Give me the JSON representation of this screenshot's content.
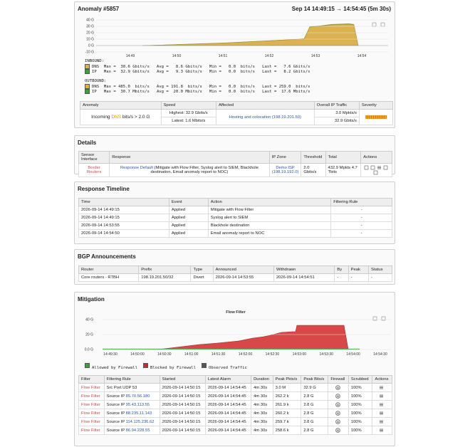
{
  "anomaly": {
    "title": "Anomaly #5857",
    "time": "Sep 14 14:49:15 → 14:54:45 (5m 30s)",
    "chart": {
      "yticks": [
        "40 G",
        "30 G",
        "20 G",
        "10 G",
        "0 G",
        "-10 G"
      ],
      "xticks": [
        "14:49",
        "14:50",
        "14:51",
        "14:52",
        "14:53",
        "14:54"
      ]
    },
    "inbound": {
      "heading": "INBOUND:",
      "lines": [
        {
          "name": "DNS",
          "stats": "  Max =  30.6 Gbits/s   Avg =   8.6 Gbits/s   Min =   0.0  bits/s   Last =   7.6 Gbits/s"
        },
        {
          "name": "IP",
          "stats": "   Max =  32.9 Gbits/s   Avg =   9.3 Gbits/s   Min =   0.0  bits/s   Last =   8.2 Gbits/s"
        }
      ]
    },
    "outbound": {
      "heading": "OUTBOUND:",
      "lines": [
        {
          "name": "DNS",
          "stats": "  Max = 485.0  bits/s   Avg = 191.8  bits/s   Min =   0.0  bits/s   Last = 259.0  bits/s"
        },
        {
          "name": "IP",
          "stats": "   Max =  30.7 Mbits/s   Avg =  20.0 Mbits/s   Min =   0.0  bits/s   Last =  17.6 Mbits/s"
        }
      ]
    },
    "summary": {
      "headers": [
        "Anomaly",
        "Speed",
        "Affected",
        "Overall IP Traffic",
        "Severity"
      ],
      "anomaly": [
        "Incoming ",
        "DNS",
        " bits/s > 2.0 G"
      ],
      "speed": [
        "Highest: 32.9 Gbits/s",
        "Latest: 1.6 Mbits/s"
      ],
      "affected": [
        "Hosting and colocation",
        "(198.19.201.50)"
      ],
      "traffic": [
        "3.0 Mpkts/s",
        "32.9 Gbits/s"
      ]
    }
  },
  "details": {
    "title": "Details",
    "headers": [
      "Sensor Interface",
      "Response",
      "IP Zone",
      "Threshold",
      "Total",
      "Actions"
    ],
    "sensor": "Border Routers",
    "response_link": "Response Default",
    "response_text": " (Mitigate with Flow Filter, Syslog alert to SIEM, Blackhole destination, Email anomaly report to NOC)",
    "zone": "Demo ISP",
    "zone_ip": "(198.19.192.0)",
    "threshold": "2.0 Gbits/s",
    "total": "432.9 Mpkts 4.7 Tbits"
  },
  "timeline": {
    "title": "Response Timeline",
    "headers": [
      "Time",
      "Event",
      "Action",
      "Filtering Rule"
    ],
    "rows": [
      [
        "2026-09-14 14:49:15",
        "Applied",
        "Mitigate with Flow Filter",
        "-"
      ],
      [
        "2026-09-14 14:49:15",
        "Applied",
        "Syslog alert to SIEM",
        "-"
      ],
      [
        "2026-09-14 14:53:55",
        "Applied",
        "Blackhole destination",
        "-"
      ],
      [
        "2026-09-14 14:54:50",
        "Applied",
        "Email anomaly report to NOC",
        "-"
      ]
    ]
  },
  "bgp": {
    "title": "BGP Announcements",
    "headers": [
      "Router",
      "Prefix",
      "Type",
      "Announced",
      "Withdrawn",
      "By",
      "Peak",
      "Status"
    ],
    "rows": [
      [
        "Core routers - RTBH",
        "198.19.201.50/32",
        "Divert",
        "2026-09-14 14:53:55",
        "2026-09-14 14:54:51",
        "-",
        "-",
        "-"
      ]
    ]
  },
  "mitigation": {
    "title": "Mitigation",
    "chart": {
      "title": "Flow Filter",
      "yticks": [
        "40 G",
        "20 G",
        "0.0 G"
      ],
      "xticks": [
        "14:49:30",
        "14:50:00",
        "14:50:30",
        "14:51:00",
        "14:51:30",
        "14:52:00",
        "14:52:30",
        "14:53:00",
        "14:53:30",
        "14:54:00",
        "14:54:30"
      ],
      "legend": [
        "Allowed by Firewall",
        "Blocked by Firewall",
        "Observed Traffic"
      ]
    },
    "headers": [
      "Filter",
      "Filtering Rule",
      "Started",
      "Latest Alarm",
      "Duration",
      "Peak Pkts/s",
      "Peak Bits/s",
      "Firewall",
      "Scrubbed",
      "Actions"
    ],
    "rows": [
      {
        "filter": "Flow Filter",
        "rule": "Src Port UDP 53",
        "started": "2026-09-14 14:50:15",
        "latest": "2026-09-14 14:54:45",
        "duration": "4m 30s",
        "pkts": "3.0 M",
        "bits": "32.9 G",
        "scrubbed": "100%"
      },
      {
        "filter": "Flow Filter",
        "rule": "Source IP ",
        "ip": "85.70.56.180",
        "started": "2026-09-14 14:50:15",
        "latest": "2026-09-14 14:54:45",
        "duration": "4m 30s",
        "pkts": "262.2 k",
        "bits": "2.8 G",
        "scrubbed": "100%"
      },
      {
        "filter": "Flow Filter",
        "rule": "Source IP ",
        "ip": "95.43.113.55",
        "started": "2026-09-14 14:50:15",
        "latest": "2026-09-14 14:54:45",
        "duration": "4m 30s",
        "pkts": "261.9 k",
        "bits": "2.8 G",
        "scrubbed": "100%"
      },
      {
        "filter": "Flow Filter",
        "rule": "Source IP ",
        "ip": "88.235.11.143",
        "started": "2026-09-14 14:50:15",
        "latest": "2026-09-14 14:54:45",
        "duration": "4m 30s",
        "pkts": "260.2 k",
        "bits": "2.8 G",
        "scrubbed": "100%"
      },
      {
        "filter": "Flow Filter",
        "rule": "Source IP ",
        "ip": "114.125.236.62",
        "started": "2026-09-14 14:50:15",
        "latest": "2026-09-14 14:54:45",
        "duration": "4m 30s",
        "pkts": "259.7 k",
        "bits": "2.8 G",
        "scrubbed": "100%"
      },
      {
        "filter": "Flow Filter",
        "rule": "Source IP ",
        "ip": "86.94.228.55",
        "started": "2026-09-14 14:50:15",
        "latest": "2026-09-14 14:54:45",
        "duration": "4m 30s",
        "pkts": "258.6 k",
        "bits": "2.8 G",
        "scrubbed": "100%"
      }
    ]
  }
}
